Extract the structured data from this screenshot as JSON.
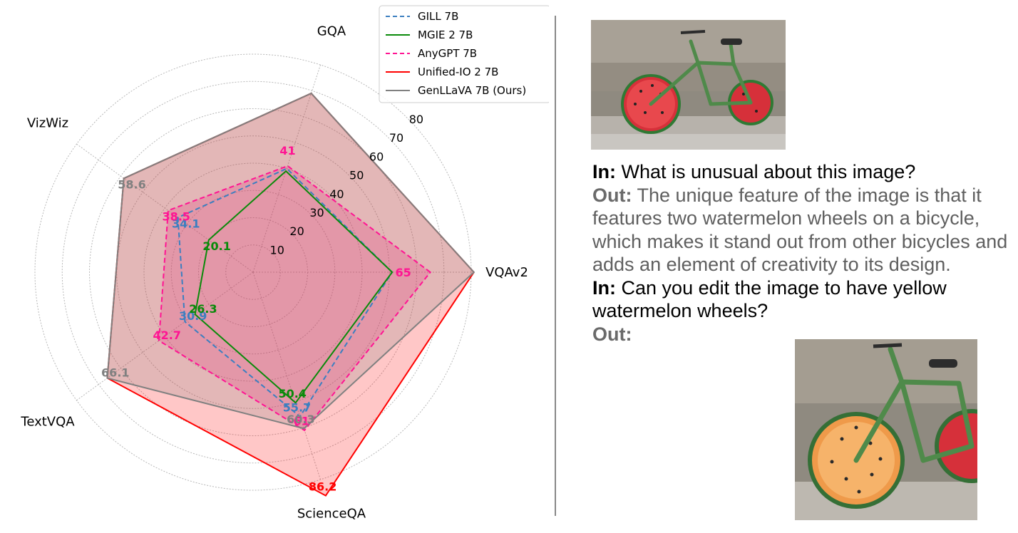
{
  "chart_data": {
    "type": "radar",
    "axes": [
      "VQAv2",
      "GQA",
      "VizWiz",
      "TextVQA",
      "ScienceQA"
    ],
    "radial_ticks": [
      10,
      20,
      30,
      40,
      50,
      60,
      70,
      80
    ],
    "rmax": 80,
    "grid": true,
    "legend_position": "top-right",
    "series": [
      {
        "name": "GILL 7B",
        "color": "#3c7fc0",
        "line_style": "dashed",
        "fill": false,
        "values": [
          51,
          40,
          34.1,
          30.9,
          55.7
        ],
        "labels": [
          null,
          null,
          "34.1",
          "30.9",
          "55.7"
        ]
      },
      {
        "name": "MGIE 2 7B",
        "color": "#0a8a0a",
        "line_style": "solid",
        "fill": false,
        "values": [
          51,
          39,
          20.1,
          26.3,
          50.4
        ],
        "labels": [
          null,
          null,
          "20.1",
          "26.3",
          "50.4"
        ]
      },
      {
        "name": "AnyGPT 7B",
        "color": "#ff1493",
        "line_style": "dashed",
        "fill": true,
        "values": [
          65,
          41,
          38.5,
          42.7,
          61
        ],
        "labels": [
          "65",
          "41",
          "38.5",
          "42.7",
          "61"
        ]
      },
      {
        "name": "Unified-IO 2 7B",
        "color": "#ff0000",
        "line_style": "solid",
        "fill": true,
        "values": [
          81,
          69,
          58.6,
          66.1,
          86.2
        ],
        "labels": [
          null,
          null,
          null,
          null,
          "86.2"
        ]
      },
      {
        "name": "GenLLaVA 7B (Ours)",
        "color": "#808080",
        "line_style": "solid",
        "fill": true,
        "values": [
          81,
          69,
          58.6,
          66.1,
          60.3
        ],
        "labels": [
          null,
          null,
          "58.6",
          "66.1",
          "60.3"
        ]
      }
    ]
  },
  "conversation": [
    {
      "role": "In:",
      "text": "What is unusual about this image?",
      "kind": "in"
    },
    {
      "role": "Out:",
      "text": "The unique feature of the image is that it features two watermelon wheels on a bicycle, which makes it stand out from other bicycles and adds an element of creativity to its design.",
      "kind": "out"
    },
    {
      "role": "In:",
      "text": "Can you edit the image to have yellow watermelon wheels?",
      "kind": "in"
    },
    {
      "role": "Out:",
      "text": "",
      "kind": "out"
    }
  ]
}
